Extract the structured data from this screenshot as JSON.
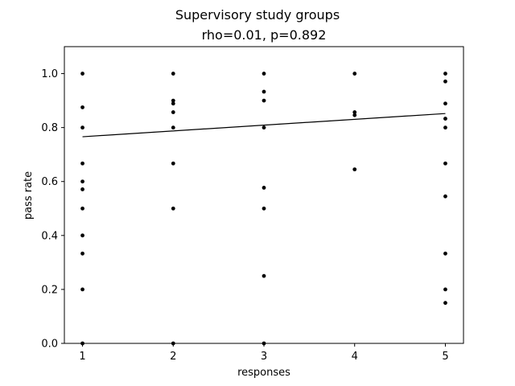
{
  "chart_data": {
    "type": "scatter",
    "title": "Supervisory study groups",
    "subtitle": "rho=0.01, p=0.892",
    "xlabel": "responses",
    "ylabel": "pass rate",
    "xlim": [
      0.8,
      5.2
    ],
    "ylim": [
      0.0,
      1.1
    ],
    "x_ticks": [
      1,
      2,
      3,
      4,
      5
    ],
    "x_tick_labels": [
      "1",
      "2",
      "3",
      "4",
      "5"
    ],
    "y_ticks": [
      0.0,
      0.2,
      0.4,
      0.6,
      0.8,
      1.0
    ],
    "y_tick_labels": [
      "0.0",
      "0.2",
      "0.4",
      "0.6",
      "0.8",
      "1.0"
    ],
    "grid": false,
    "point_color": "#000000",
    "line_color": "#000000",
    "points": [
      {
        "x": 1,
        "y": 1.0
      },
      {
        "x": 1,
        "y": 0.875
      },
      {
        "x": 1,
        "y": 0.8
      },
      {
        "x": 1,
        "y": 0.667
      },
      {
        "x": 1,
        "y": 0.6
      },
      {
        "x": 1,
        "y": 0.571
      },
      {
        "x": 1,
        "y": 0.5
      },
      {
        "x": 1,
        "y": 0.4
      },
      {
        "x": 1,
        "y": 0.333
      },
      {
        "x": 1,
        "y": 0.2
      },
      {
        "x": 1,
        "y": 0.0
      },
      {
        "x": 2,
        "y": 1.0
      },
      {
        "x": 2,
        "y": 0.9
      },
      {
        "x": 2,
        "y": 0.889
      },
      {
        "x": 2,
        "y": 0.857
      },
      {
        "x": 2,
        "y": 0.8
      },
      {
        "x": 2,
        "y": 0.667
      },
      {
        "x": 2,
        "y": 0.5
      },
      {
        "x": 2,
        "y": 0.0
      },
      {
        "x": 3,
        "y": 1.0
      },
      {
        "x": 3,
        "y": 0.933
      },
      {
        "x": 3,
        "y": 0.9
      },
      {
        "x": 3,
        "y": 0.8
      },
      {
        "x": 3,
        "y": 0.577
      },
      {
        "x": 3,
        "y": 0.5
      },
      {
        "x": 3,
        "y": 0.25
      },
      {
        "x": 3,
        "y": 0.0
      },
      {
        "x": 4,
        "y": 1.0
      },
      {
        "x": 4,
        "y": 0.857
      },
      {
        "x": 4,
        "y": 0.846
      },
      {
        "x": 4,
        "y": 0.645
      },
      {
        "x": 5,
        "y": 1.0
      },
      {
        "x": 5,
        "y": 0.971
      },
      {
        "x": 5,
        "y": 0.889
      },
      {
        "x": 5,
        "y": 0.833
      },
      {
        "x": 5,
        "y": 0.8
      },
      {
        "x": 5,
        "y": 0.667
      },
      {
        "x": 5,
        "y": 0.545
      },
      {
        "x": 5,
        "y": 0.333
      },
      {
        "x": 5,
        "y": 0.2
      },
      {
        "x": 5,
        "y": 0.15
      }
    ],
    "regression_line": {
      "x": [
        1,
        5
      ],
      "y": [
        0.766,
        0.852
      ]
    }
  }
}
